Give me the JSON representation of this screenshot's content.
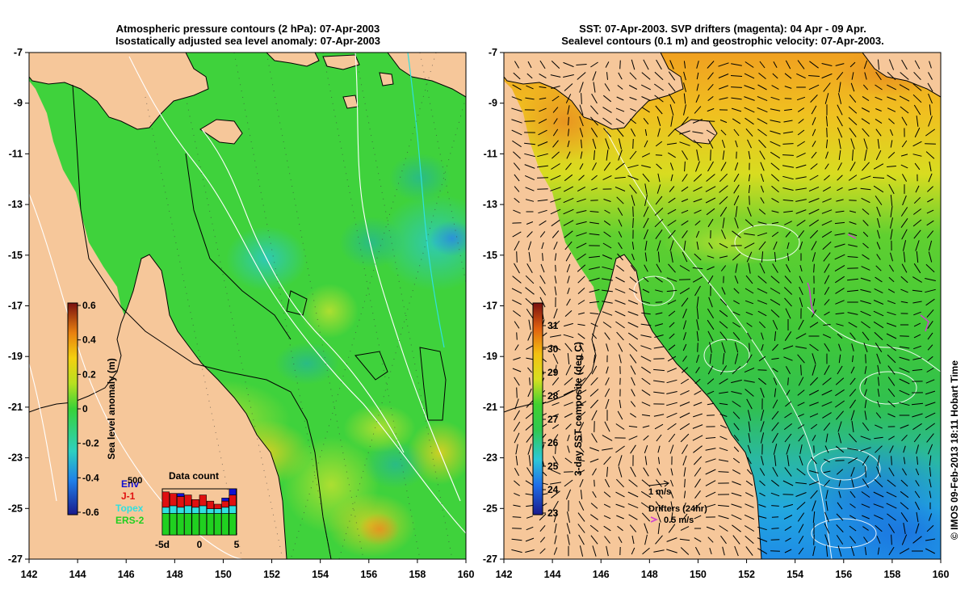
{
  "left_panel": {
    "title_line1": "Atmospheric pressure contours (2 hPa): 07-Apr-2003",
    "title_line2": "Isostatically adjusted sea level anomaly: 07-Apr-2003",
    "colorbar": {
      "label": "Sea level anomaly (m)",
      "ticks": [
        "0.6",
        "0.4",
        "0.2",
        "0",
        "-0.2",
        "-0.4",
        "-0.6"
      ]
    },
    "data_count": {
      "title": "Data count",
      "xlabels": [
        "-5d",
        "0",
        "5"
      ],
      "top_value": "500",
      "legend": [
        {
          "label": "Env",
          "color": "#1010d0"
        },
        {
          "label": "J-1",
          "color": "#e01010"
        },
        {
          "label": "Topex",
          "color": "#30e0e0"
        },
        {
          "label": "ERS-2",
          "color": "#20d020"
        }
      ]
    }
  },
  "right_panel": {
    "title_line1": "SST: 07-Apr-2003. SVP drifters (magenta): 04 Apr - 09 Apr.",
    "title_line2": "Sealevel contours (0.1 m) and geostrophic velocity: 07-Apr-2003.",
    "colorbar": {
      "label": "3-day SST composite (deg C)",
      "ticks": [
        "31",
        "30",
        "29",
        "28",
        "27",
        "26",
        "25",
        "24",
        "23"
      ]
    },
    "velocity_scale_label": "1 m/s",
    "drifters_label": "Drifters (24hr)",
    "drifters_scale_label": "0.5 m/s"
  },
  "axes": {
    "x_ticks": [
      "142",
      "144",
      "146",
      "148",
      "150",
      "152",
      "154",
      "156",
      "158",
      "160"
    ],
    "y_ticks": [
      "-7",
      "-9",
      "-11",
      "-13",
      "-15",
      "-17",
      "-19",
      "-21",
      "-23",
      "-25",
      "-27"
    ]
  },
  "credit": "© IMOS 09-Feb-2013 18:11 Hobart Time",
  "colors": {
    "land": "#f6c79a",
    "sla_ocean": "#3fd23c",
    "sst_warm": "#f0c020",
    "sst_mid": "#3fd23c",
    "sst_cool": "#20b0e0"
  }
}
